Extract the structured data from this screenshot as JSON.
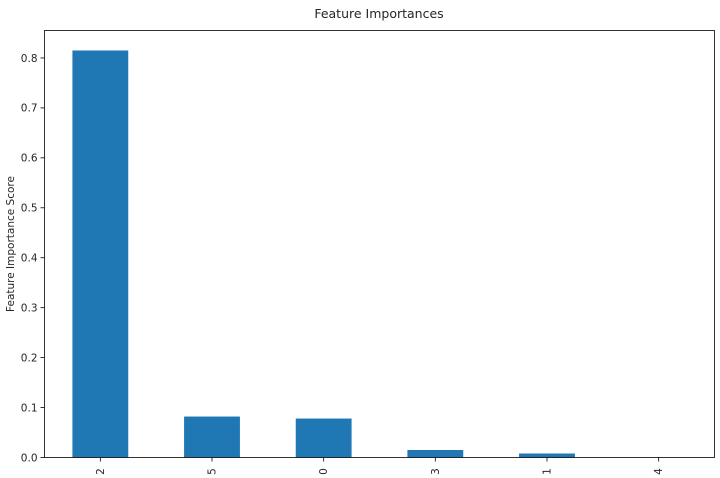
{
  "chart_data": {
    "type": "bar",
    "title": "Feature Importances",
    "xlabel": "",
    "ylabel": "Feature Importance Score",
    "categories": [
      "2",
      "5",
      "0",
      "3",
      "1",
      "4"
    ],
    "values": [
      0.815,
      0.082,
      0.078,
      0.015,
      0.008,
      0.0
    ],
    "ylim": [
      0,
      0.855
    ],
    "yticks": [
      0.0,
      0.1,
      0.2,
      0.3,
      0.4,
      0.5,
      0.6,
      0.7,
      0.8
    ],
    "ytick_labels": [
      "0.0",
      "0.1",
      "0.2",
      "0.3",
      "0.4",
      "0.5",
      "0.6",
      "0.7",
      "0.8"
    ],
    "grid": false,
    "legend": "none",
    "bar_color": "#1f77b4"
  }
}
